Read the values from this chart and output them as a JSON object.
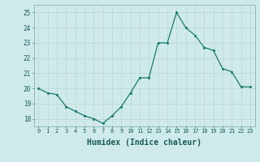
{
  "x": [
    0,
    1,
    2,
    3,
    4,
    5,
    6,
    7,
    8,
    9,
    10,
    11,
    12,
    13,
    14,
    15,
    16,
    17,
    18,
    19,
    20,
    21,
    22,
    23
  ],
  "y": [
    20.0,
    19.7,
    19.6,
    18.8,
    18.5,
    18.2,
    18.0,
    17.7,
    18.2,
    18.8,
    19.7,
    20.7,
    20.7,
    23.0,
    23.0,
    25.0,
    24.0,
    23.5,
    22.7,
    22.5,
    21.3,
    21.1,
    20.1,
    20.1
  ],
  "line_color": "#1a7a6e",
  "marker": "s",
  "marker_size": 2.0,
  "bg_color": "#ceeaea",
  "grid_color": "#c0d8d8",
  "xlabel": "Humidex (Indice chaleur)",
  "xlabel_fontsize": 7,
  "ylim": [
    17.5,
    25.5
  ],
  "xlim": [
    -0.5,
    23.5
  ],
  "yticks": [
    18,
    19,
    20,
    21,
    22,
    23,
    24,
    25
  ],
  "xtick_labels": [
    "0",
    "1",
    "2",
    "3",
    "4",
    "5",
    "6",
    "7",
    "8",
    "9",
    "10",
    "11",
    "12",
    "13",
    "14",
    "15",
    "16",
    "17",
    "18",
    "19",
    "20",
    "21",
    "22",
    "23"
  ]
}
